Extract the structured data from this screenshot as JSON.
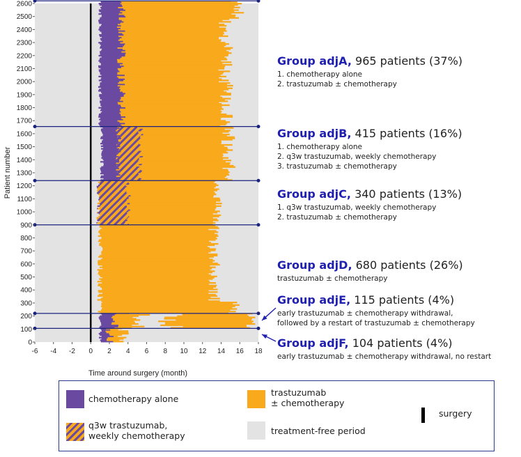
{
  "chart_data": {
    "type": "stacked-swimmer",
    "xlabel": "Time around surgery (month)",
    "ylabel": "Patient number",
    "xlim": [
      -6,
      18
    ],
    "ylim": [
      0,
      2600
    ],
    "x_ticks": [
      "-6",
      "-4",
      "-2",
      "0",
      "2",
      "4",
      "6",
      "8",
      "10",
      "12",
      "14",
      "16",
      "18"
    ],
    "y_ticks": [
      "0",
      "100",
      "200",
      "300",
      "400",
      "500",
      "600",
      "700",
      "800",
      "900",
      "1000",
      "1100",
      "1200",
      "1300",
      "1400",
      "1500",
      "1600",
      "1700",
      "1800",
      "1900",
      "2000",
      "2100",
      "2200",
      "2300",
      "2400",
      "2500",
      "2600"
    ],
    "surgery_x": 0,
    "group_boundaries": [
      105,
      220,
      900,
      1240,
      1655,
      2620
    ],
    "groups": [
      {
        "id": "adjA",
        "name": "Group adjA,",
        "count_text": "965 patients (37%)",
        "patients": 965,
        "percent": 37,
        "range": [
          1655,
          2620
        ],
        "lines": [
          "1. chemotherapy alone",
          "2. trastuzumab ± chemotherapy"
        ],
        "chemo_only": [
          1.0,
          3.7
        ],
        "trastuzumab": [
          3.7,
          15.8
        ]
      },
      {
        "id": "adjB",
        "name": "Group adjB,",
        "count_text": "415 patients (16%)",
        "patients": 415,
        "percent": 16,
        "range": [
          1240,
          1655
        ],
        "lines": [
          "1. chemotherapy alone",
          "2. q3w trastuzumab,  weekly chemotherapy",
          "3. trastuzumab  ± chemotherapy"
        ],
        "chemo_only": [
          1.0,
          3.0
        ],
        "q3w_weekly": [
          3.0,
          5.8
        ],
        "trastuzumab": [
          5.8,
          16.0
        ]
      },
      {
        "id": "adjC",
        "name": "Group adjC,",
        "count_text": "340 patients (13%)",
        "patients": 340,
        "percent": 13,
        "range": [
          900,
          1240
        ],
        "lines": [
          "1. q3w trastuzumab,  weekly chemotherapy",
          "2. trastuzumab  ± chemotherapy"
        ],
        "q3w_weekly": [
          0.8,
          4.2
        ],
        "trastuzumab": [
          4.2,
          14.0
        ]
      },
      {
        "id": "adjD",
        "name": "Group adjD,",
        "count_text": "680 patients (26%)",
        "patients": 680,
        "percent": 26,
        "range": [
          220,
          900
        ],
        "lines": [
          "trastuzumab  ± chemotherapy"
        ],
        "trastuzumab": [
          1.0,
          14.5
        ]
      },
      {
        "id": "adjE",
        "name": "Group adjE,",
        "count_text": "115 patients (4%)",
        "patients": 115,
        "percent": 4,
        "range": [
          105,
          220
        ],
        "lines": [
          "early trastuzumab  ± chemotherapy withdrawal,",
          "followed by a restart of trastuzumab ± chemotherapy"
        ],
        "chemo_only": [
          1.0,
          3.0
        ],
        "trastuzumab": [
          3.0,
          6.0
        ],
        "gap": [
          6.0,
          9.0
        ],
        "restart": [
          9.0,
          17.5
        ]
      },
      {
        "id": "adjF",
        "name": "Group adjF,",
        "count_text": "104 patients (4%)",
        "patients": 104,
        "percent": 4,
        "range": [
          0,
          105
        ],
        "lines": [
          "early trastuzumab  ± chemotherapy withdrawal,  no restart"
        ],
        "chemo_only": [
          1.0,
          2.5
        ],
        "trastuzumab": [
          2.5,
          4.5
        ]
      }
    ]
  },
  "colors": {
    "chemo": "#6a4aa0",
    "trastuzumab": "#f9a91c",
    "free": "#e3e3e3",
    "boundary": "#1a237e",
    "group_title": "#1f1fb0"
  },
  "legend": {
    "chemo": "chemotherapy alone",
    "trastuzumab": "trastuzumab\n± chemotherapy",
    "q3w": "q3w trastuzumab,\nweekly chemotherapy",
    "free": "treatment-free period",
    "surgery": "surgery"
  }
}
